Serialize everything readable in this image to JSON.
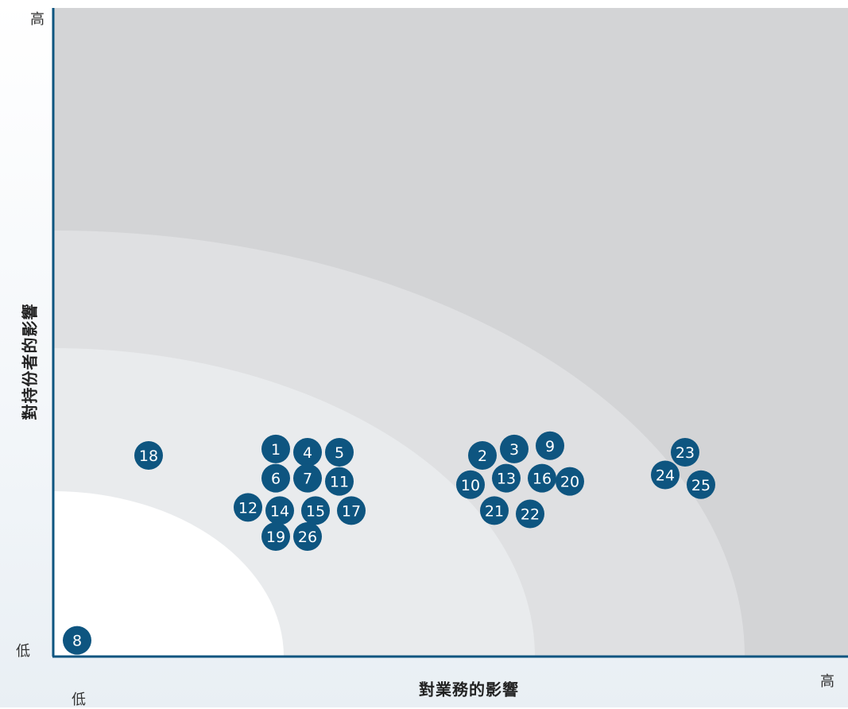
{
  "chart_data": {
    "type": "scatter",
    "xlabel": "對業務的影響",
    "ylabel": "對持份者的影響",
    "x_low_label": "低",
    "x_high_label": "高",
    "y_low_label": "低",
    "y_high_label": "高",
    "xlim": [
      0,
      100
    ],
    "ylim": [
      0,
      100
    ],
    "point_color": "#0e5580",
    "zone_colors": [
      "#ffffff",
      "#e9ebed",
      "#dfe0e2",
      "#d3d4d6"
    ],
    "points": [
      {
        "label": "1",
        "x": 28,
        "y": 32
      },
      {
        "label": "2",
        "x": 54,
        "y": 31
      },
      {
        "label": "3",
        "x": 58,
        "y": 32
      },
      {
        "label": "4",
        "x": 32,
        "y": 31.5
      },
      {
        "label": "5",
        "x": 36,
        "y": 31.5
      },
      {
        "label": "6",
        "x": 28,
        "y": 27.5
      },
      {
        "label": "7",
        "x": 32,
        "y": 27.5
      },
      {
        "label": "8",
        "x": 3,
        "y": 2.5
      },
      {
        "label": "9",
        "x": 62.5,
        "y": 32.5
      },
      {
        "label": "10",
        "x": 52.5,
        "y": 26.5
      },
      {
        "label": "11",
        "x": 36,
        "y": 27
      },
      {
        "label": "12",
        "x": 24.5,
        "y": 23
      },
      {
        "label": "13",
        "x": 57,
        "y": 27.5
      },
      {
        "label": "14",
        "x": 28.5,
        "y": 22.5
      },
      {
        "label": "15",
        "x": 33,
        "y": 22.5
      },
      {
        "label": "16",
        "x": 61.5,
        "y": 27.5
      },
      {
        "label": "17",
        "x": 37.5,
        "y": 22.5
      },
      {
        "label": "18",
        "x": 12,
        "y": 31
      },
      {
        "label": "19",
        "x": 28,
        "y": 18.5
      },
      {
        "label": "20",
        "x": 65,
        "y": 27
      },
      {
        "label": "21",
        "x": 55.5,
        "y": 22.5
      },
      {
        "label": "22",
        "x": 60,
        "y": 22
      },
      {
        "label": "23",
        "x": 79.5,
        "y": 31.5
      },
      {
        "label": "24",
        "x": 77,
        "y": 28
      },
      {
        "label": "25",
        "x": 81.5,
        "y": 26.5
      },
      {
        "label": "26",
        "x": 32,
        "y": 18.5
      }
    ]
  }
}
